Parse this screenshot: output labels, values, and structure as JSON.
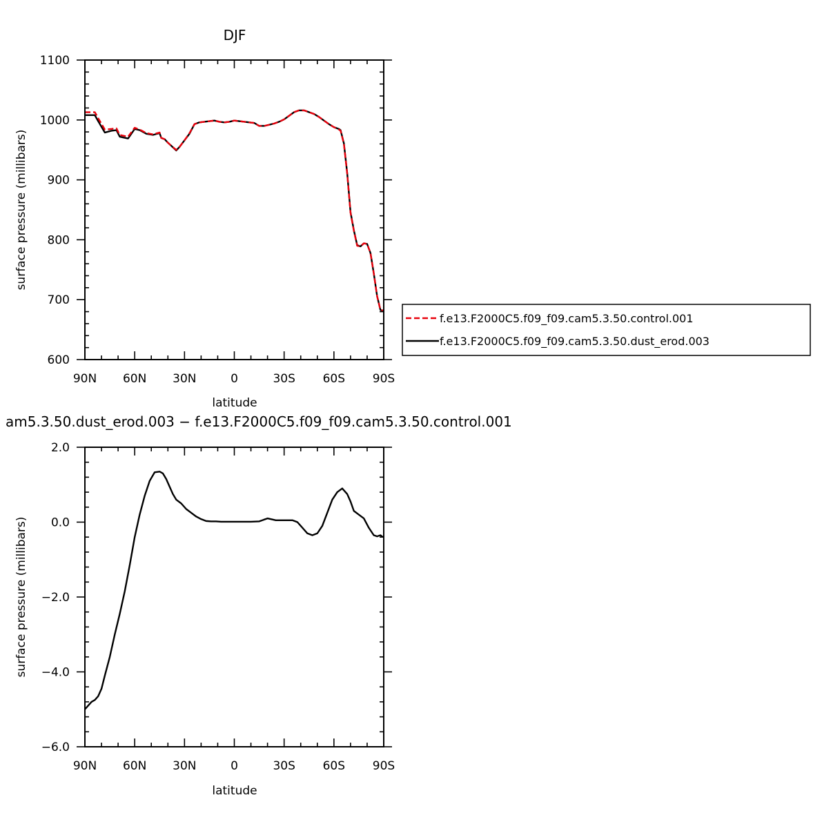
{
  "chart_data": [
    {
      "type": "line",
      "title": "DJF",
      "xlabel": "latitude",
      "ylabel": "surface pressure (millibars)",
      "xlim": [
        90,
        -90
      ],
      "ylim": [
        600,
        1100
      ],
      "x_tick_values": [
        90,
        60,
        30,
        0,
        -30,
        -60,
        -90
      ],
      "x_tick_labels": [
        "90N",
        "60N",
        "30N",
        "0",
        "30S",
        "60S",
        "90S"
      ],
      "y_tick_values": [
        600,
        700,
        800,
        900,
        1000,
        1100
      ],
      "y_tick_labels": [
        "600",
        "700",
        "800",
        "900",
        "1000",
        "1100"
      ],
      "legend_position": "right",
      "grid": false,
      "series": [
        {
          "name": "f.e13.F2000C5.f09_f09.cam5.3.50.control.001",
          "color": "#e8000b",
          "dash": "dashed",
          "x": [
            90,
            84,
            82,
            78,
            74,
            71,
            69,
            64,
            60,
            57,
            53,
            49,
            45,
            44,
            42,
            40,
            38,
            35,
            33,
            30,
            27,
            24,
            21,
            18,
            15,
            12,
            9,
            6,
            3,
            0,
            -3,
            -6,
            -9,
            -12,
            -15,
            -18,
            -21,
            -24,
            -27,
            -30,
            -33,
            -36,
            -39,
            -42,
            -45,
            -48,
            -51,
            -54,
            -57,
            -60,
            -63,
            -64,
            -66,
            -68,
            -70,
            -72,
            -74,
            -76,
            -78,
            -80,
            -82,
            -84,
            -86,
            -88,
            -89.5
          ],
          "y": [
            1013,
            1013,
            1003,
            984,
            985,
            986,
            975,
            972,
            987,
            984,
            978,
            976,
            979,
            970,
            968,
            962,
            957,
            950,
            955,
            966,
            978,
            993,
            996,
            997,
            998,
            999,
            997,
            996,
            997,
            999,
            998,
            997,
            996,
            995,
            990,
            990,
            992,
            994,
            997,
            1001,
            1007,
            1013,
            1016,
            1016,
            1013,
            1010,
            1005,
            999,
            993,
            988,
            984,
            982,
            960,
            910,
            845,
            815,
            790,
            789,
            794,
            793,
            778,
            744,
            706,
            683,
            682
          ]
        },
        {
          "name": "f.e13.F2000C5.f09_f09.cam5.3.50.dust_erod.003",
          "color": "#000000",
          "dash": "solid",
          "x": [
            90,
            84,
            82,
            78,
            74,
            71,
            69,
            64,
            60,
            57,
            53,
            49,
            45,
            44,
            42,
            40,
            38,
            35,
            33,
            30,
            27,
            24,
            21,
            18,
            15,
            12,
            9,
            6,
            3,
            0,
            -3,
            -6,
            -9,
            -12,
            -15,
            -18,
            -21,
            -24,
            -27,
            -30,
            -33,
            -36,
            -39,
            -42,
            -45,
            -48,
            -51,
            -54,
            -57,
            -60,
            -63,
            -64,
            -66,
            -68,
            -70,
            -72,
            -74,
            -76,
            -78,
            -80,
            -82,
            -84,
            -86,
            -88,
            -89.5
          ],
          "y": [
            1008,
            1008,
            998,
            979,
            982,
            983,
            972,
            969,
            985,
            983,
            977,
            975,
            978,
            970,
            968,
            962,
            957,
            949,
            955,
            966,
            977,
            993,
            996,
            997,
            998,
            999,
            997,
            996,
            997,
            999,
            998,
            997,
            996,
            995,
            990,
            990,
            992,
            994,
            997,
            1001,
            1007,
            1013,
            1016,
            1016,
            1013,
            1010,
            1005,
            999,
            993,
            988,
            985,
            983,
            961,
            911,
            846,
            816,
            791,
            789,
            794,
            793,
            778,
            744,
            706,
            683,
            681
          ]
        }
      ]
    },
    {
      "type": "line",
      "title": "am5.3.50.dust_erod.003 − f.e13.F2000C5.f09_f09.cam5.3.50.control.001",
      "xlabel": "latitude",
      "ylabel": "surface pressure (millibars)",
      "xlim": [
        90,
        -90
      ],
      "ylim": [
        -6,
        2
      ],
      "x_tick_values": [
        90,
        60,
        30,
        0,
        -30,
        -60,
        -90
      ],
      "x_tick_labels": [
        "90N",
        "60N",
        "30N",
        "0",
        "30S",
        "60S",
        "90S"
      ],
      "y_tick_values": [
        -6,
        -4,
        -2,
        0,
        2
      ],
      "y_tick_labels": [
        "−6.0",
        "−4.0",
        "−2.0",
        "0.0",
        "2.0"
      ],
      "grid": false,
      "series": [
        {
          "color": "#000000",
          "dash": "solid",
          "x": [
            90,
            88,
            86,
            84,
            82,
            80,
            78,
            75,
            72,
            69,
            66,
            63,
            60,
            57,
            54,
            51,
            48,
            45,
            43,
            41,
            39,
            37,
            35,
            32,
            29,
            26,
            23,
            20,
            17,
            14,
            11,
            8,
            5,
            2,
            0,
            -5,
            -10,
            -15,
            -20,
            -25,
            -30,
            -35,
            -38,
            -41,
            -44,
            -47,
            -50,
            -53,
            -56,
            -59,
            -62,
            -65,
            -68,
            -70,
            -72,
            -75,
            -78,
            -81,
            -84,
            -86,
            -88,
            -89.5
          ],
          "y": [
            -5.0,
            -4.9,
            -4.8,
            -4.75,
            -4.65,
            -4.45,
            -4.1,
            -3.6,
            -3.0,
            -2.45,
            -1.85,
            -1.15,
            -0.4,
            0.2,
            0.7,
            1.1,
            1.33,
            1.35,
            1.3,
            1.15,
            0.95,
            0.75,
            0.6,
            0.5,
            0.35,
            0.25,
            0.15,
            0.08,
            0.03,
            0.02,
            0.02,
            0.01,
            0.01,
            0.01,
            0.01,
            0.01,
            0.01,
            0.02,
            0.1,
            0.05,
            0.05,
            0.05,
            0.0,
            -0.15,
            -0.3,
            -0.35,
            -0.3,
            -0.1,
            0.25,
            0.6,
            0.8,
            0.9,
            0.75,
            0.55,
            0.3,
            0.2,
            0.1,
            -0.15,
            -0.35,
            -0.38,
            -0.35,
            -0.4
          ]
        }
      ]
    }
  ]
}
